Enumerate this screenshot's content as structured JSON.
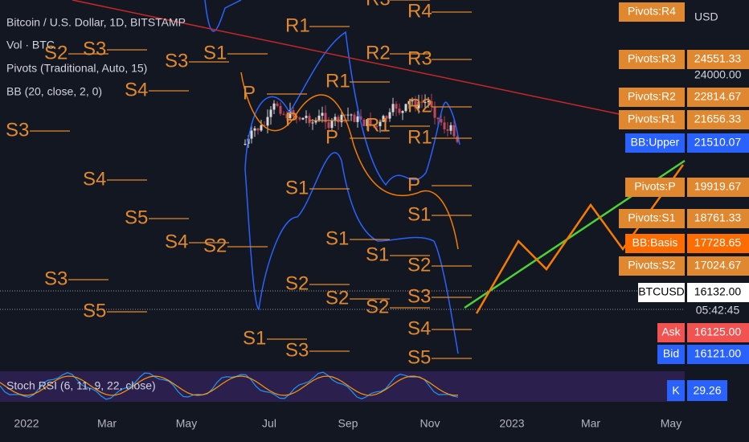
{
  "header": {
    "title": "Bitcoin / U.S. Dollar, 1D, BITSTAMP",
    "indicators": [
      "Vol · BTC",
      "Pivots (Traditional, Auto, 15)",
      "BB (20, close, 2, 0)"
    ]
  },
  "price_axis": {
    "currency": "USD",
    "tick": "24000.00"
  },
  "price_labels": [
    {
      "name": "Pivots:R4",
      "value": null
    },
    {
      "name": "Pivots:R3",
      "value": "24551.33"
    },
    {
      "name": "Pivots:R2",
      "value": "22814.67"
    },
    {
      "name": "Pivots:R1",
      "value": "21656.33"
    },
    {
      "name": "BB:Upper",
      "value": "21510.07"
    },
    {
      "name": "Pivots:P",
      "value": "19919.67"
    },
    {
      "name": "Pivots:S1",
      "value": "18761.33"
    },
    {
      "name": "BB:Basis",
      "value": "17728.65"
    },
    {
      "name": "Pivots:S2",
      "value": "17024.67"
    },
    {
      "name": "BTCUSD",
      "value": "16132.00",
      "countdown": "05:42:45"
    },
    {
      "name": "Ask",
      "value": "16125.00"
    },
    {
      "name": "Bid",
      "value": "16121.00"
    }
  ],
  "chart_labels": [
    "R3",
    "R4",
    "R1",
    "S2",
    "S3",
    "S3",
    "S1",
    "R2",
    "R3",
    "S4",
    "R1",
    "P",
    "R2",
    "P",
    "R1",
    "S3",
    "R1",
    "P",
    "S4",
    "S1",
    "P",
    "S1",
    "S5",
    "S4",
    "S2",
    "S1",
    "S1",
    "S2",
    "S3",
    "S2",
    "S2",
    "S3",
    "S5",
    "S2",
    "S4",
    "S1",
    "S3",
    "S5"
  ],
  "stoch": {
    "label": "Stoch RSI (6, 11, 9, 22, close)",
    "k_name": "K",
    "k_value": "29.26"
  },
  "time_axis": [
    "2022",
    "Mar",
    "May",
    "Jul",
    "Sep",
    "Nov",
    "2023",
    "Mar",
    "May"
  ]
}
